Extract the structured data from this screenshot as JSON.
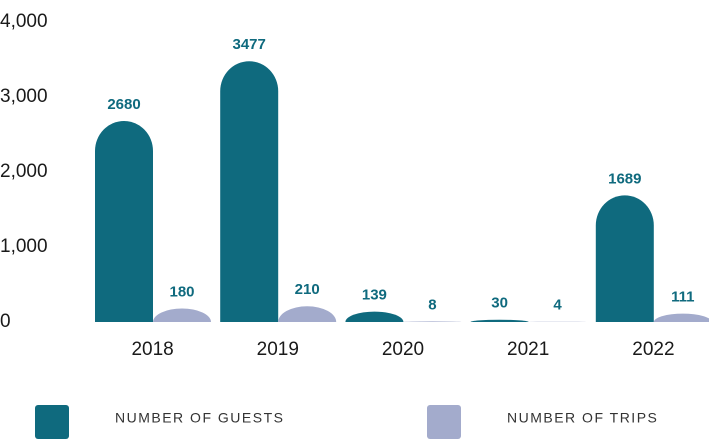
{
  "chart_data": {
    "type": "bar",
    "categories": [
      "2018",
      "2019",
      "2020",
      "2021",
      "2022"
    ],
    "series": [
      {
        "name": "NUMBER OF GUESTS",
        "color": "#0f6a7e",
        "values": [
          2680,
          3477,
          139,
          30,
          1689
        ]
      },
      {
        "name": "NUMBER OF TRIPS",
        "color": "#a3abcc",
        "values": [
          180,
          210,
          8,
          4,
          111
        ]
      }
    ],
    "ylim": [
      0,
      4000
    ],
    "yticks": [
      0,
      {
        "value": 1000,
        "label": "1,000"
      },
      {
        "value": 2000,
        "label": "2,000"
      },
      {
        "value": 3000,
        "label": "3,000"
      },
      {
        "value": 4000,
        "label": "4,000"
      }
    ],
    "grid": false
  }
}
